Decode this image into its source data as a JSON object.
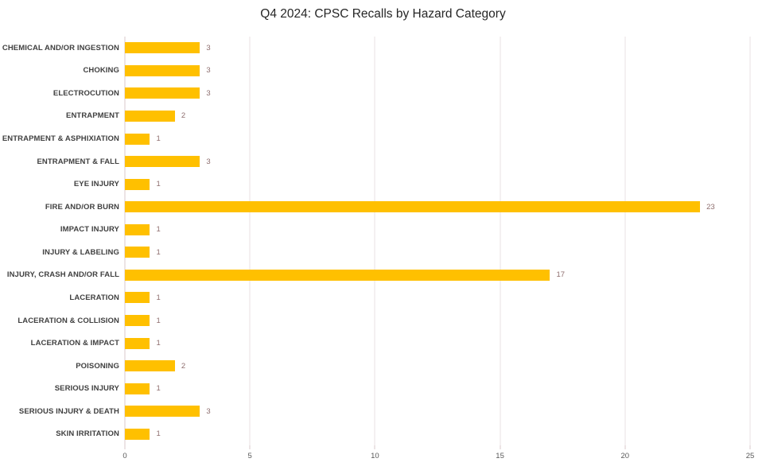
{
  "title": "Q4 2024: CPSC Recalls by Hazard Category",
  "colors": {
    "bar": "#FFC000",
    "gridline": "#EAE1E3",
    "axis_line": "#D9C8CB",
    "value_label": "#8E6E6E",
    "category_label": "#404040",
    "tick_label": "#595959",
    "title": "#262626"
  },
  "chart_data": {
    "type": "bar",
    "orientation": "horizontal",
    "title": "Q4 2024: CPSC Recalls by Hazard Category",
    "categories": [
      "CHEMICAL AND/OR INGESTION",
      "CHOKING",
      "ELECTROCUTION",
      "ENTRAPMENT",
      "ENTRAPMENT & ASPHIXIATION",
      "ENTRAPMENT & FALL",
      "EYE INJURY",
      "FIRE AND/OR BURN",
      "IMPACT INJURY",
      "INJURY & LABELING",
      "INJURY, CRASH AND/OR FALL",
      "LACERATION",
      "LACERATION & COLLISION",
      "LACERATION & IMPACT",
      "POISONING",
      "SERIOUS INJURY",
      "SERIOUS INJURY & DEATH",
      "SKIN IRRITATION"
    ],
    "values": [
      3,
      3,
      3,
      2,
      1,
      3,
      1,
      23,
      1,
      1,
      17,
      1,
      1,
      1,
      2,
      1,
      3,
      1
    ],
    "xlabel": "",
    "ylabel": "",
    "xlim": [
      0,
      25
    ],
    "x_ticks": [
      0,
      5,
      10,
      15,
      20,
      25
    ],
    "grid": "vertical",
    "data_labels": true,
    "legend": "none"
  }
}
